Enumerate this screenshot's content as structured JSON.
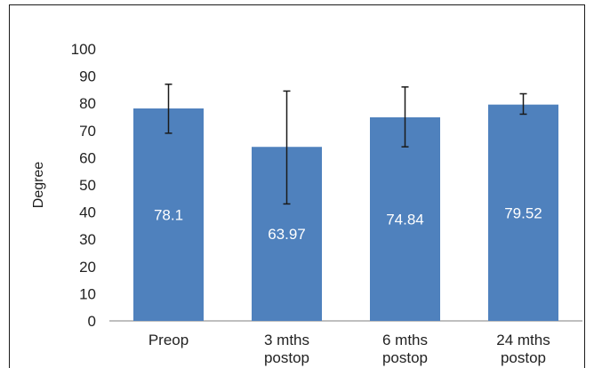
{
  "chart_data": {
    "type": "bar",
    "title": "",
    "xlabel": "",
    "ylabel": "Degree",
    "ylim": [
      0,
      100
    ],
    "yticks": [
      0,
      10,
      20,
      30,
      40,
      50,
      60,
      70,
      80,
      90,
      100
    ],
    "grid": false,
    "legend": "none",
    "bar_color": "#4f81bd",
    "categories": [
      [
        "Preop"
      ],
      [
        "3 mths",
        "postop"
      ],
      [
        "6 mths",
        "postop"
      ],
      [
        "24 mths",
        "postop"
      ]
    ],
    "values": [
      78.1,
      63.97,
      74.84,
      79.52
    ],
    "data_labels": [
      "78.1",
      "63.97",
      "74.84",
      "79.52"
    ],
    "error_bars": [
      {
        "low": 69,
        "high": 87
      },
      {
        "low": 43,
        "high": 84.5
      },
      {
        "low": 64,
        "high": 86
      },
      {
        "low": 76,
        "high": 83.5
      }
    ]
  }
}
